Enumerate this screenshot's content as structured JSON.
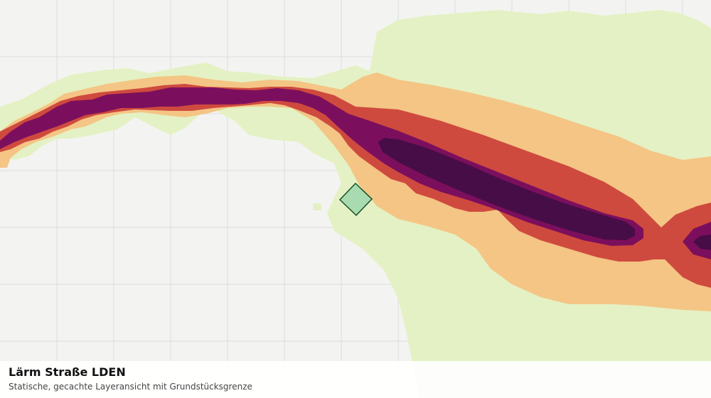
{
  "map": {
    "layer_title": "Lärm Straße LDEN",
    "layer_subtitle": "Statische, gecachte Layeransicht mit Grundstücksgrenze",
    "colors": {
      "background": "#f3f4f1",
      "grid": "#dcdedb",
      "band_1": "#e4f1c4",
      "band_2": "#f4c585",
      "band_3": "#cf4a3e",
      "band_4": "#7c0f5d",
      "band_5": "#470d47",
      "parcel_fill": "#8fd1a6",
      "parcel_stroke": "#1a4d25"
    }
  }
}
